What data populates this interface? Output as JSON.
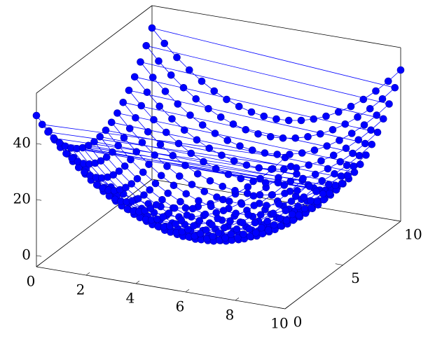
{
  "chart_data": {
    "type": "scatter3d",
    "color": "#0000ff",
    "xlim": [
      0,
      10
    ],
    "ylim": [
      0,
      10
    ],
    "zlim": [
      -4,
      58
    ],
    "xticks": [
      0,
      2,
      4,
      6,
      8,
      10
    ],
    "yticks": [
      0,
      5,
      10
    ],
    "zticks": [
      0,
      20,
      40
    ],
    "x": [
      0,
      0.5,
      1,
      1.5,
      2,
      2.5,
      3,
      3.5,
      4,
      4.5,
      5,
      5.5,
      6,
      6.5,
      7,
      7.5,
      8,
      8.5,
      9,
      9.5,
      10
    ],
    "y": [
      0,
      0.5,
      1,
      1.5,
      2,
      2.5,
      3,
      3.5,
      4,
      4.5,
      5,
      5.5,
      6,
      6.5,
      7,
      7.5,
      8,
      8.5,
      9,
      9.5,
      10
    ],
    "z": [
      [
        50,
        45.25,
        41,
        37.25,
        34,
        31.25,
        29,
        27.25,
        26,
        25.25,
        25,
        25.25,
        26,
        27.25,
        29,
        31.25,
        34,
        37.25,
        41,
        45.25,
        50
      ],
      [
        45.25,
        40.5,
        36.25,
        32.5,
        29.25,
        26.5,
        24.25,
        22.5,
        21.25,
        20.5,
        20.25,
        20.5,
        21.25,
        22.5,
        24.25,
        26.5,
        29.25,
        32.5,
        36.25,
        40.5,
        45.25
      ],
      [
        41,
        36.25,
        32,
        28.25,
        25,
        22.25,
        20,
        18.25,
        17,
        16.25,
        16,
        16.25,
        17,
        18.25,
        20,
        22.25,
        25,
        28.25,
        32,
        36.25,
        41
      ],
      [
        37.25,
        32.5,
        28.25,
        24.5,
        21.25,
        18.5,
        16.25,
        14.5,
        13.25,
        12.5,
        12.25,
        12.5,
        13.25,
        14.5,
        16.25,
        18.5,
        21.25,
        24.5,
        28.25,
        32.5,
        37.25
      ],
      [
        34,
        29.25,
        25,
        21.25,
        18,
        15.25,
        13,
        11.25,
        10,
        9.25,
        9,
        9.25,
        10,
        11.25,
        13,
        15.25,
        18,
        21.25,
        25,
        29.25,
        34
      ],
      [
        31.25,
        26.5,
        22.25,
        18.5,
        15.25,
        12.5,
        10.25,
        8.5,
        7.25,
        6.5,
        6.25,
        6.5,
        7.25,
        8.5,
        10.25,
        12.5,
        15.25,
        18.5,
        22.25,
        26.5,
        31.25
      ],
      [
        29,
        24.25,
        20,
        16.25,
        13,
        10.25,
        8,
        6.25,
        5,
        4.25,
        4,
        4.25,
        5,
        6.25,
        8,
        10.25,
        13,
        16.25,
        20,
        24.25,
        29
      ],
      [
        27.25,
        22.5,
        18.25,
        14.5,
        11.25,
        8.5,
        6.25,
        4.5,
        3.25,
        2.5,
        2.25,
        2.5,
        3.25,
        4.5,
        6.25,
        8.5,
        11.25,
        14.5,
        18.25,
        22.5,
        27.25
      ],
      [
        26,
        21.25,
        17,
        13.25,
        10,
        7.25,
        5,
        3.25,
        2,
        1.25,
        1,
        1.25,
        2,
        3.25,
        5,
        7.25,
        10,
        13.25,
        17,
        21.25,
        26
      ],
      [
        25.25,
        20.5,
        16.25,
        12.5,
        9.25,
        6.5,
        4.25,
        2.5,
        1.25,
        0.5,
        0.25,
        0.5,
        1.25,
        2.5,
        4.25,
        6.5,
        9.25,
        12.5,
        16.25,
        20.5,
        25.25
      ],
      [
        25,
        20.25,
        16,
        12.25,
        9,
        6.25,
        4,
        2.25,
        1,
        0.25,
        0,
        0.25,
        1,
        2.25,
        4,
        6.25,
        9,
        12.25,
        16,
        20.25,
        25
      ],
      [
        25.25,
        20.5,
        16.25,
        12.5,
        9.25,
        6.5,
        4.25,
        2.5,
        1.25,
        0.5,
        0.25,
        0.5,
        1.25,
        2.5,
        4.25,
        6.5,
        9.25,
        12.5,
        16.25,
        20.5,
        25.25
      ],
      [
        26,
        21.25,
        17,
        13.25,
        10,
        7.25,
        5,
        3.25,
        2,
        1.25,
        1,
        1.25,
        2,
        3.25,
        5,
        7.25,
        10,
        13.25,
        17,
        21.25,
        26
      ],
      [
        27.25,
        22.5,
        18.25,
        14.5,
        11.25,
        8.5,
        6.25,
        4.5,
        3.25,
        2.5,
        2.25,
        2.5,
        3.25,
        4.5,
        6.25,
        8.5,
        11.25,
        14.5,
        18.25,
        22.5,
        27.25
      ],
      [
        29,
        24.25,
        20,
        16.25,
        13,
        10.25,
        8,
        6.25,
        5,
        4.25,
        4,
        4.25,
        5,
        6.25,
        8,
        10.25,
        13,
        16.25,
        20,
        24.25,
        29
      ],
      [
        31.25,
        26.5,
        22.25,
        18.5,
        15.25,
        12.5,
        10.25,
        8.5,
        7.25,
        6.5,
        6.25,
        6.5,
        7.25,
        8.5,
        10.25,
        12.5,
        15.25,
        18.5,
        22.25,
        26.5,
        31.25
      ],
      [
        34,
        29.25,
        25,
        21.25,
        18,
        15.25,
        13,
        11.25,
        10,
        9.25,
        9,
        9.25,
        10,
        11.25,
        13,
        15.25,
        18,
        21.25,
        25,
        29.25,
        34
      ],
      [
        37.25,
        32.5,
        28.25,
        24.5,
        21.25,
        18.5,
        16.25,
        14.5,
        13.25,
        12.5,
        12.25,
        12.5,
        13.25,
        14.5,
        16.25,
        18.5,
        21.25,
        24.5,
        28.25,
        32.5,
        37.25
      ],
      [
        41,
        36.25,
        32,
        28.25,
        25,
        22.25,
        20,
        18.25,
        17,
        16.25,
        16,
        16.25,
        17,
        18.25,
        20,
        22.25,
        25,
        28.25,
        32,
        36.25,
        41
      ],
      [
        45.25,
        40.5,
        36.25,
        32.5,
        29.25,
        26.5,
        24.25,
        22.5,
        21.25,
        20.5,
        20.25,
        20.5,
        21.25,
        22.5,
        24.25,
        26.5,
        29.25,
        32.5,
        36.25,
        40.5,
        45.25
      ],
      [
        50,
        45.25,
        41,
        37.25,
        34,
        31.25,
        29,
        27.25,
        26,
        25.25,
        25,
        25.25,
        26,
        27.25,
        29,
        31.25,
        34,
        37.25,
        41,
        45.25,
        50
      ]
    ]
  }
}
